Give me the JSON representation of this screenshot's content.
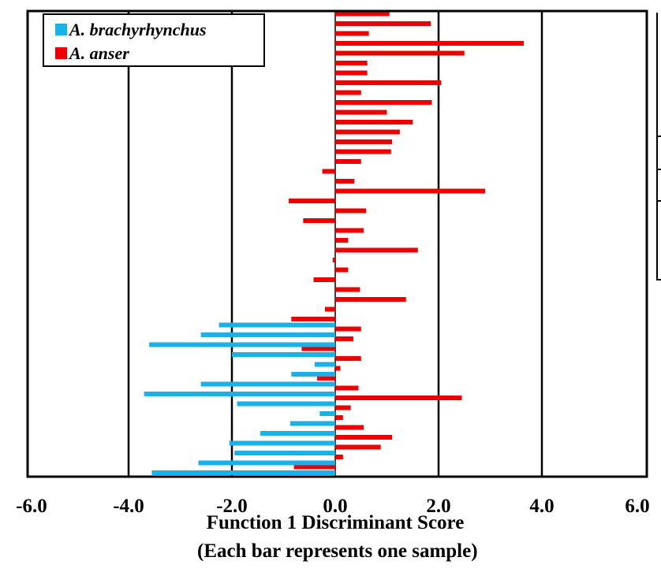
{
  "chart_data": {
    "type": "bar",
    "orientation": "horizontal",
    "xlabel": "Function 1 Discriminant Score",
    "xlabel_note": "(Each bar represents one sample)",
    "xlim": [
      -6.0,
      6.0
    ],
    "x_ticks": [
      "-6.0",
      "-4.0",
      "-2.0",
      "0.0",
      "2.0",
      "4.0",
      "6.0"
    ],
    "grid": "vertical",
    "legend_position": "top-left",
    "legend": [
      {
        "name": "A. brachyrhynchus",
        "color": "#19b2e8"
      },
      {
        "name": "A. anser",
        "color": "#ee0000"
      }
    ],
    "series": [
      {
        "name": "A. anser",
        "color": "#ee0000",
        "values": [
          1.05,
          1.85,
          0.65,
          3.65,
          2.5,
          0.62,
          0.62,
          2.05,
          0.5,
          1.87,
          1.0,
          1.5,
          1.25,
          1.1,
          1.08,
          0.5,
          -0.25,
          0.37,
          2.9,
          -0.9,
          0.6,
          -0.62,
          0.55,
          0.25,
          1.6,
          -0.05,
          0.25,
          -0.42,
          0.48,
          1.37,
          -0.2,
          -0.85,
          0.5,
          0.35,
          -0.65,
          0.5,
          0.1,
          -0.35,
          0.45,
          2.45,
          0.3,
          0.15,
          0.55,
          1.1,
          0.88,
          0.15,
          -0.8
        ]
      },
      {
        "name": "A. brachyrhynchus",
        "color": "#19b2e8",
        "values": [
          -2.25,
          -2.6,
          -3.6,
          -2.0,
          -0.4,
          -0.85,
          -2.6,
          -3.7,
          -1.9,
          -0.3,
          -0.87,
          -1.45,
          -2.05,
          -1.95,
          -2.65,
          -3.55
        ]
      }
    ]
  }
}
